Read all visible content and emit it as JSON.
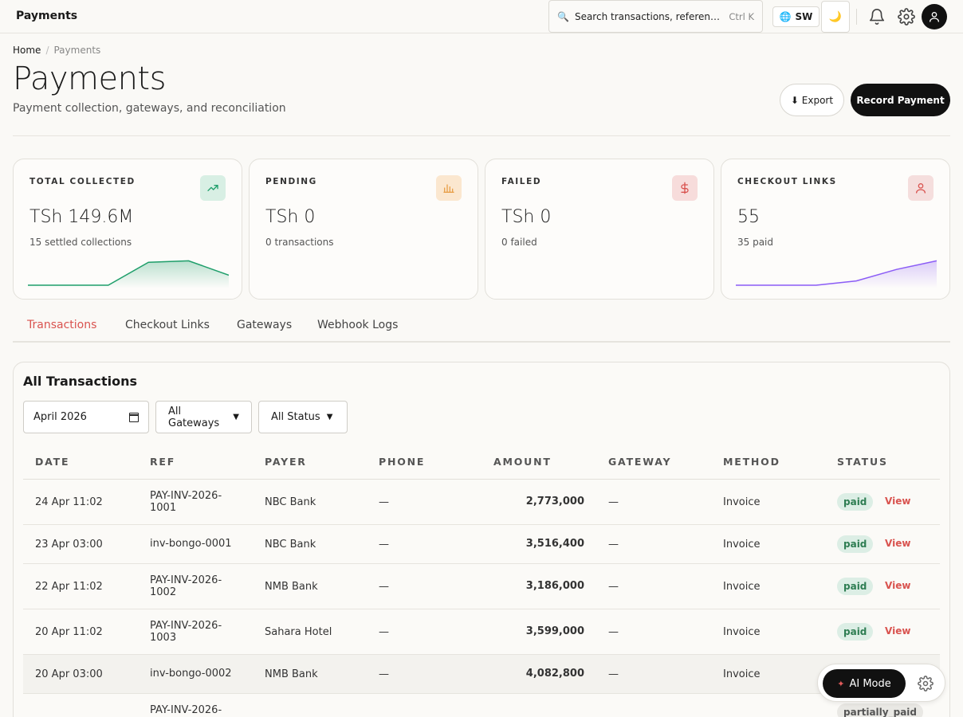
{
  "topbar": {
    "app_title": "Payments",
    "search_placeholder": "Search transactions, references…",
    "search_shortcut": "Ctrl K",
    "language": "SW",
    "icons": [
      "search-icon",
      "globe-icon",
      "moon-icon",
      "bell-icon",
      "gear-icon",
      "user-icon"
    ]
  },
  "header": {
    "breadcrumb": [
      "Home",
      "Payments"
    ],
    "breadcrumb_sep": "/",
    "title": "Payments",
    "subtitle": "Payment collection, gateways, and reconciliation",
    "export_label": "⬇ Export",
    "record_label": "Record Payment"
  },
  "stats": [
    {
      "label": "TOTAL COLLECTED",
      "value": "TSh 149.6M",
      "sub": "15 settled collections",
      "icon": "trend-up-icon",
      "color": "#1e9e6a",
      "tint": "#d8efe4",
      "trend": [
        0,
        0,
        0,
        0.8,
        0.85,
        0.35
      ]
    },
    {
      "label": "PENDING",
      "value": "TSh 0",
      "sub": "0 transactions",
      "icon": "bar-chart-icon",
      "color": "#e8a04a",
      "tint": "#fbe7cf",
      "trend": []
    },
    {
      "label": "FAILED",
      "value": "TSh 0",
      "sub": "0 failed",
      "icon": "dollar-icon",
      "color": "#d9534f",
      "tint": "#f7dcdb",
      "trend": []
    },
    {
      "label": "CHECKOUT LINKS",
      "value": "55",
      "sub": "35 paid",
      "icon": "user-icon",
      "color": "#8b5cf6",
      "tint": "#f5dedd",
      "trend": [
        0,
        0,
        0,
        0.15,
        0.55,
        0.85
      ]
    }
  ],
  "tabs": [
    "Transactions",
    "Checkout Links",
    "Gateways",
    "Webhook Logs"
  ],
  "active_tab": 0,
  "transactions": {
    "title": "All Transactions",
    "filters": {
      "month": "April 2026",
      "gateway": "All Gateways",
      "status": "All Status"
    },
    "columns": [
      "DATE",
      "REF",
      "PAYER",
      "PHONE",
      "AMOUNT",
      "GATEWAY",
      "METHOD",
      "STATUS"
    ],
    "rows": [
      {
        "date": "24 Apr 11:02",
        "ref": "PAY-INV-2026-1001",
        "payer": "NBC Bank",
        "phone": "—",
        "amount": "2,773,000",
        "gateway": "—",
        "method": "Invoice",
        "status": "paid",
        "action": "View"
      },
      {
        "date": "23 Apr 03:00",
        "ref": "inv-bongo-0001",
        "payer": "NBC Bank",
        "phone": "—",
        "amount": "3,516,400",
        "gateway": "—",
        "method": "Invoice",
        "status": "paid",
        "action": "View"
      },
      {
        "date": "22 Apr 11:02",
        "ref": "PAY-INV-2026-1002",
        "payer": "NMB Bank",
        "phone": "—",
        "amount": "3,186,000",
        "gateway": "—",
        "method": "Invoice",
        "status": "paid",
        "action": "View"
      },
      {
        "date": "20 Apr 11:02",
        "ref": "PAY-INV-2026-1003",
        "payer": "Sahara Hotel",
        "phone": "—",
        "amount": "3,599,000",
        "gateway": "—",
        "method": "Invoice",
        "status": "paid",
        "action": "View"
      },
      {
        "date": "20 Apr 03:00",
        "ref": "inv-bongo-0002",
        "payer": "NMB Bank",
        "phone": "—",
        "amount": "4,082,800",
        "gateway": "—",
        "method": "Invoice",
        "status": "",
        "action": ""
      },
      {
        "date": "",
        "ref": "PAY-INV-2026-",
        "payer": "",
        "phone": "",
        "amount": "",
        "gateway": "",
        "method": "",
        "status": "partially_paid",
        "action": ""
      }
    ]
  },
  "ai": {
    "label": "AI Mode"
  }
}
